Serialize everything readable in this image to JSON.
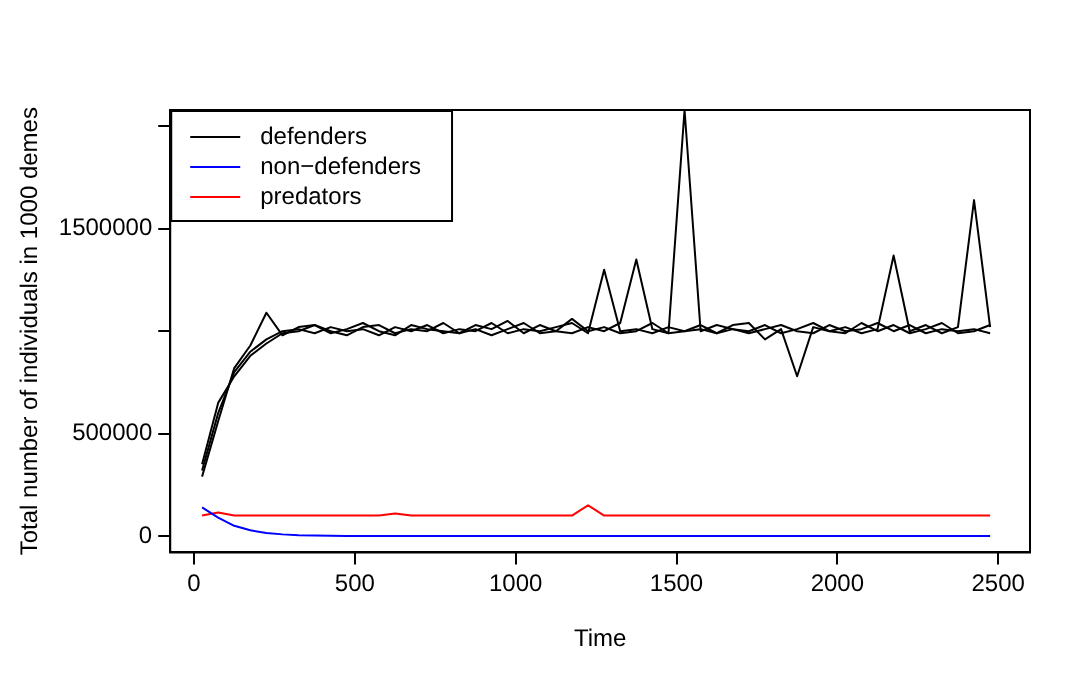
{
  "chart_data": {
    "type": "line",
    "xlabel": "Time",
    "ylabel": "Total number of individuals in 1000 demes",
    "x": [
      25,
      75,
      125,
      175,
      225,
      275,
      325,
      375,
      425,
      475,
      525,
      575,
      625,
      675,
      725,
      775,
      825,
      875,
      925,
      975,
      1025,
      1075,
      1125,
      1175,
      1225,
      1275,
      1325,
      1375,
      1425,
      1475,
      1525,
      1575,
      1625,
      1675,
      1725,
      1775,
      1825,
      1875,
      1925,
      1975,
      2025,
      2075,
      2125,
      2175,
      2225,
      2275,
      2325,
      2375,
      2425,
      2475
    ],
    "series": [
      {
        "name": "defenders",
        "color": "#000000",
        "values": [
          320000,
          600000,
          800000,
          900000,
          960000,
          1000000,
          1010000,
          990000,
          1020000,
          1000000,
          1010000,
          980000,
          1020000,
          1000000,
          1030000,
          990000,
          1010000,
          1000000,
          1040000,
          990000,
          1010000,
          1000000,
          1020000,
          1040000,
          990000,
          1300000,
          1000000,
          1010000,
          990000,
          1020000,
          1000000,
          1030000,
          990000,
          1010000,
          1000000,
          1030000,
          990000,
          1010000,
          1040000,
          1000000,
          1020000,
          990000,
          1010000,
          1370000,
          1000000,
          1030000,
          990000,
          1020000,
          1640000,
          1020000
        ]
      },
      {
        "color": "#000000",
        "values": [
          290000,
          560000,
          820000,
          930000,
          1090000,
          980000,
          1020000,
          1030000,
          990000,
          1010000,
          1040000,
          1000000,
          980000,
          1030000,
          1010000,
          1000000,
          990000,
          1030000,
          1010000,
          1050000,
          990000,
          1030000,
          1000000,
          990000,
          1020000,
          1000000,
          1040000,
          1350000,
          1010000,
          990000,
          2080000,
          1000000,
          1030000,
          1010000,
          990000,
          1010000,
          1030000,
          1000000,
          990000,
          1030000,
          1000000,
          1010000,
          1040000,
          1000000,
          1030000,
          990000,
          1010000,
          1000000,
          1010000,
          990000
        ]
      },
      {
        "color": "#000000",
        "values": [
          350000,
          650000,
          780000,
          880000,
          940000,
          990000,
          1000000,
          1030000,
          1000000,
          980000,
          1020000,
          1030000,
          990000,
          1010000,
          1000000,
          1040000,
          990000,
          1010000,
          980000,
          1010000,
          1040000,
          990000,
          1000000,
          1060000,
          1000000,
          1020000,
          990000,
          1000000,
          1040000,
          990000,
          1000000,
          1010000,
          990000,
          1030000,
          1040000,
          960000,
          1010000,
          780000,
          1020000,
          1000000,
          990000,
          1040000,
          1000000,
          1030000,
          990000,
          1010000,
          1040000,
          990000,
          1000000,
          1030000
        ]
      },
      {
        "name": "non−defenders",
        "color": "#0000ff",
        "values": [
          140000,
          90000,
          50000,
          28000,
          15000,
          8000,
          4000,
          2000,
          1000,
          0,
          0,
          0,
          0,
          0,
          0,
          0,
          0,
          0,
          0,
          0,
          0,
          0,
          0,
          0,
          0,
          0,
          0,
          0,
          0,
          0,
          0,
          0,
          0,
          0,
          0,
          0,
          0,
          0,
          0,
          0,
          0,
          0,
          0,
          0,
          0,
          0,
          0,
          0,
          0,
          0
        ]
      },
      {
        "name": "predators",
        "color": "#ff0000",
        "values": [
          100000,
          115000,
          100000,
          100000,
          100000,
          100000,
          100000,
          100000,
          100000,
          100000,
          100000,
          100000,
          110000,
          100000,
          100000,
          100000,
          100000,
          100000,
          100000,
          100000,
          100000,
          100000,
          100000,
          100000,
          150000,
          100000,
          100000,
          100000,
          100000,
          100000,
          100000,
          100000,
          100000,
          100000,
          100000,
          100000,
          100000,
          100000,
          100000,
          100000,
          100000,
          100000,
          100000,
          100000,
          100000,
          100000,
          100000,
          100000,
          100000,
          100000
        ]
      }
    ],
    "xlim": [
      -74,
      2599
    ],
    "xticks": [
      0,
      500,
      1000,
      1500,
      2000,
      2500
    ],
    "ylim": [
      -80000,
      2080000
    ],
    "yticks": [
      0,
      500000,
      {
        "value": 1000000,
        "label": null
      },
      1500000,
      {
        "value": 2000000,
        "label": null
      }
    ],
    "legend": "top left",
    "grid": false,
    "marker": "none",
    "line_style": "solid"
  }
}
